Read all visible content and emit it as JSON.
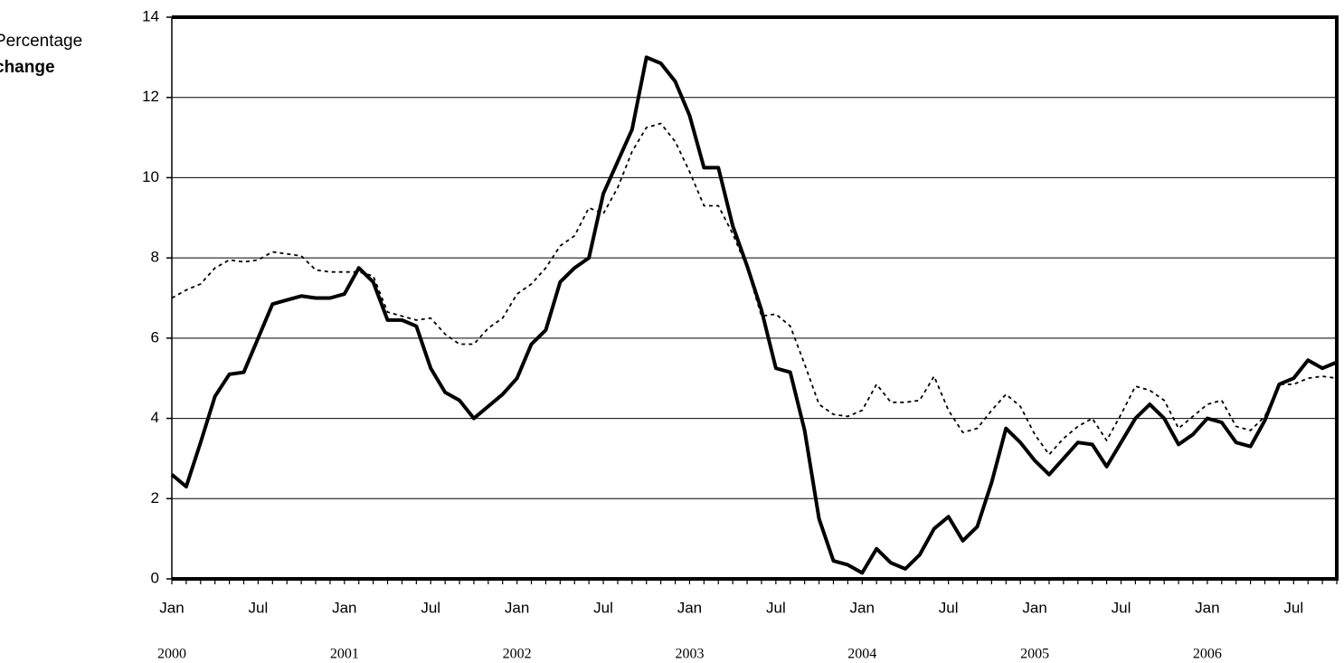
{
  "chart_data": {
    "type": "line",
    "y_label": [
      "Percentage",
      "change"
    ],
    "categories": [
      "Jan",
      null,
      null,
      null,
      null,
      null,
      "Jul",
      null,
      null,
      null,
      null,
      null,
      "Jan",
      null,
      null,
      null,
      null,
      null,
      "Jul",
      null,
      null,
      null,
      null,
      null,
      "Jan",
      null,
      null,
      null,
      null,
      null,
      "Jul",
      null,
      null,
      null,
      null,
      null,
      "Jan",
      null,
      null,
      null,
      null,
      null,
      "Jul",
      null,
      null,
      null,
      null,
      null,
      "Jan",
      null,
      null,
      null,
      null,
      null,
      "Jul",
      null,
      null,
      null,
      null,
      null,
      "Jan",
      null,
      null,
      null,
      null,
      null,
      "Jul",
      null,
      null,
      null,
      null,
      null,
      "Jan",
      null,
      null,
      null,
      null,
      null,
      "Jul",
      null,
      null,
      null
    ],
    "year_labels": [
      "2000",
      null,
      null,
      null,
      null,
      null,
      null,
      null,
      null,
      null,
      null,
      null,
      "2001",
      null,
      null,
      null,
      null,
      null,
      null,
      null,
      null,
      null,
      null,
      null,
      "2002",
      null,
      null,
      null,
      null,
      null,
      null,
      null,
      null,
      null,
      null,
      null,
      "2003",
      null,
      null,
      null,
      null,
      null,
      null,
      null,
      null,
      null,
      null,
      null,
      "2004",
      null,
      null,
      null,
      null,
      null,
      null,
      null,
      null,
      null,
      null,
      null,
      "2005",
      null,
      null,
      null,
      null,
      null,
      null,
      null,
      null,
      null,
      null,
      null,
      "2006",
      null,
      null,
      null,
      null,
      null,
      null,
      null,
      null,
      null
    ],
    "series": [
      {
        "color": "#000000",
        "style": "solid",
        "values": [
          2.6,
          2.3,
          3.4,
          4.55,
          5.1,
          5.15,
          6.0,
          6.85,
          6.95,
          7.05,
          7.0,
          7.0,
          7.1,
          7.75,
          7.4,
          6.45,
          6.45,
          6.3,
          5.25,
          4.65,
          4.45,
          4.0,
          4.3,
          4.6,
          5.0,
          5.85,
          6.2,
          7.4,
          7.75,
          8.0,
          9.6,
          10.4,
          11.2,
          13.0,
          12.85,
          12.4,
          11.55,
          10.25,
          10.25,
          8.8,
          7.8,
          6.7,
          5.25,
          5.15,
          3.7,
          1.5,
          0.45,
          0.35,
          0.15,
          0.75,
          0.4,
          0.25,
          0.6,
          1.25,
          1.55,
          0.95,
          1.3,
          2.4,
          3.75,
          3.4,
          2.95,
          2.6,
          3.0,
          3.4,
          3.35,
          2.8,
          3.4,
          4.0,
          4.35,
          4.0,
          3.35,
          3.6,
          4.0,
          3.9,
          3.4,
          3.3,
          3.95,
          4.85,
          5.0,
          5.45,
          5.25,
          5.4
        ]
      },
      {
        "color": "#000000",
        "style": "dotted",
        "values": [
          7.0,
          7.2,
          7.35,
          7.75,
          7.95,
          7.9,
          7.95,
          8.15,
          8.1,
          8.05,
          7.7,
          7.65,
          7.65,
          7.65,
          7.55,
          6.65,
          6.55,
          6.45,
          6.5,
          6.1,
          5.85,
          5.85,
          6.25,
          6.5,
          7.1,
          7.35,
          7.75,
          8.3,
          8.55,
          9.25,
          9.1,
          9.75,
          10.65,
          11.25,
          11.35,
          10.9,
          10.15,
          9.3,
          9.3,
          8.6,
          7.75,
          6.55,
          6.6,
          6.3,
          5.35,
          4.35,
          4.1,
          4.05,
          4.2,
          4.85,
          4.4,
          4.4,
          4.45,
          5.05,
          4.2,
          3.65,
          3.75,
          4.2,
          4.6,
          4.3,
          3.6,
          3.1,
          3.5,
          3.8,
          4.0,
          3.45,
          4.1,
          4.8,
          4.7,
          4.45,
          3.75,
          4.05,
          4.35,
          4.45,
          3.8,
          3.7,
          4.05,
          4.85,
          4.85,
          5.0,
          5.05,
          5.0
        ]
      }
    ],
    "ylim": [
      0,
      14
    ],
    "yticks": [
      0,
      2,
      4,
      6,
      8,
      10,
      12,
      14
    ],
    "grid": true
  }
}
